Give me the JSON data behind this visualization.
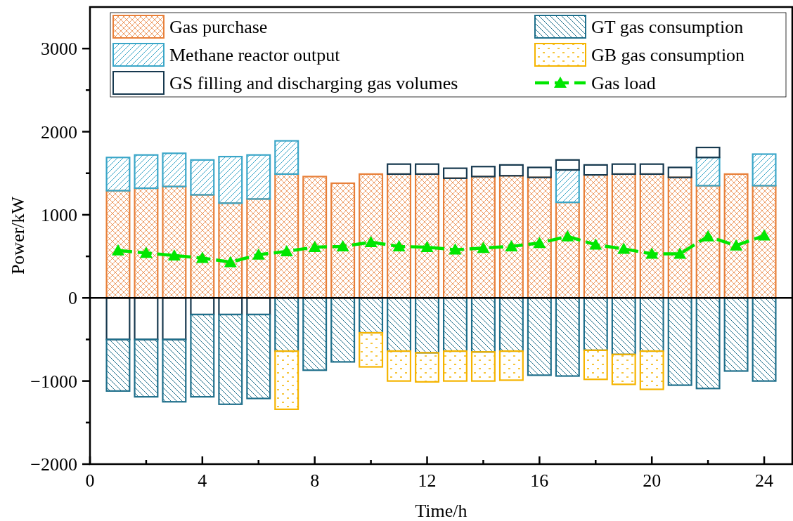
{
  "chart_data": {
    "type": "bar",
    "stacked": true,
    "xlabel": "Time/h",
    "ylabel": "Power/kW",
    "x": [
      1,
      2,
      3,
      4,
      5,
      6,
      7,
      8,
      9,
      10,
      11,
      12,
      13,
      14,
      15,
      16,
      17,
      18,
      19,
      20,
      21,
      22,
      23,
      24
    ],
    "series": [
      {
        "name": "Gas purchase",
        "color": "#e8803a",
        "values": [
          1290,
          1320,
          1340,
          1240,
          1140,
          1190,
          1490,
          1460,
          1380,
          1490,
          1490,
          1490,
          1440,
          1460,
          1470,
          1450,
          1150,
          1480,
          1490,
          1490,
          1450,
          1350,
          1490,
          1350
        ]
      },
      {
        "name": "Methane reactor output",
        "color": "#3aa6c8",
        "values": [
          400,
          400,
          400,
          420,
          560,
          530,
          400,
          0,
          0,
          0,
          0,
          0,
          0,
          0,
          0,
          0,
          390,
          0,
          0,
          0,
          0,
          340,
          0,
          380
        ]
      },
      {
        "name": "GS filling and discharging gas volumes",
        "color": "#17394f",
        "values": [
          -500,
          -500,
          -500,
          -200,
          -200,
          -200,
          0,
          0,
          0,
          0,
          120,
          120,
          120,
          120,
          130,
          120,
          120,
          120,
          120,
          120,
          120,
          120,
          0,
          0
        ]
      },
      {
        "name": "GT gas consumption",
        "color": "#1f6f8b",
        "values": [
          -620,
          -690,
          -750,
          -990,
          -1080,
          -1010,
          -640,
          -870,
          -770,
          -420,
          -640,
          -660,
          -640,
          -650,
          -640,
          -930,
          -940,
          -630,
          -680,
          -640,
          -1050,
          -1090,
          -880,
          -1000
        ]
      },
      {
        "name": "GB gas consumption",
        "color": "#f5b400",
        "values": [
          0,
          0,
          0,
          0,
          0,
          0,
          -700,
          0,
          0,
          -410,
          -360,
          -350,
          -360,
          -350,
          -350,
          0,
          0,
          -350,
          -360,
          -460,
          0,
          0,
          0,
          0
        ]
      },
      {
        "name": "Gas load",
        "type": "line",
        "color": "#00e600",
        "line_style": "dashed",
        "marker": "triangle",
        "values": [
          570,
          540,
          510,
          480,
          430,
          520,
          560,
          610,
          620,
          670,
          620,
          610,
          580,
          600,
          620,
          660,
          740,
          640,
          590,
          530,
          530,
          740,
          630,
          750
        ]
      }
    ],
    "xlim": [
      0,
      25
    ],
    "xticks": [
      0,
      {
        "value": 2,
        "label": null
      },
      4,
      {
        "value": 6,
        "label": null
      },
      8,
      {
        "value": 10,
        "label": null
      },
      12,
      {
        "value": 14,
        "label": null
      },
      16,
      {
        "value": 18,
        "label": null
      },
      20,
      {
        "value": 22,
        "label": null
      },
      24
    ],
    "ylim": [
      -2000,
      3500
    ],
    "yticks": [
      -2000,
      {
        "value": -1500,
        "label": null
      },
      -1000,
      {
        "value": -500,
        "label": null
      },
      0,
      {
        "value": 500,
        "label": null
      },
      1000,
      {
        "value": 1500,
        "label": null
      },
      2000,
      {
        "value": 2500,
        "label": null
      },
      3000
    ],
    "ref_lines": [
      {
        "axis": "y",
        "value": 0,
        "color": "#000000"
      }
    ],
    "legend": "top",
    "grid": false
  }
}
